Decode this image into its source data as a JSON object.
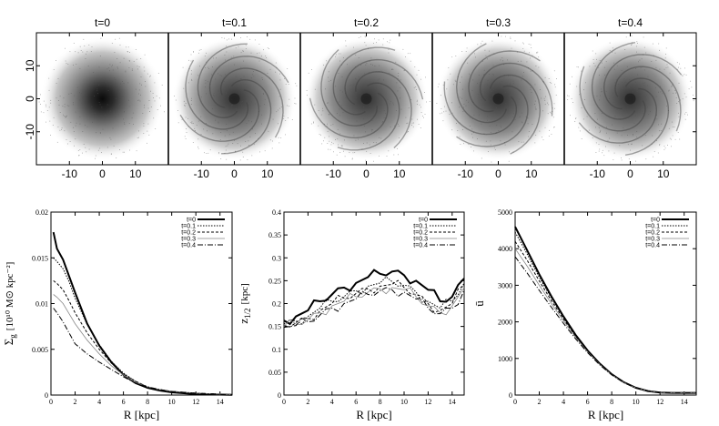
{
  "chart_data": [
    {
      "type": "scatter",
      "panel": "snapshots",
      "titles": [
        "t=0",
        "t=0.1",
        "t=0.2",
        "t=0.3",
        "t=0.4"
      ],
      "xlim": [
        -20,
        20
      ],
      "ylim": [
        -20,
        20
      ],
      "x_ticks": [
        "-10",
        "0",
        "10"
      ],
      "y_ticks": [
        "10",
        "0",
        "-10"
      ],
      "description_values": {
        "x_tick_values": [
          -10,
          0,
          10
        ],
        "y_tick_values": [
          10,
          0,
          -10
        ]
      }
    },
    {
      "type": "line",
      "xlabel": "R [kpc]",
      "ylabel": "Σg [10¹⁰ M⊙ kpc⁻²]",
      "ylabel_main": "Σ",
      "ylabel_sub": "g",
      "ylabel_units": "[10¹⁰ M⊙ kpc⁻²]",
      "xlim": [
        0,
        15
      ],
      "ylim": [
        0,
        0.02
      ],
      "x_ticks": [
        "0",
        "2",
        "4",
        "6",
        "8",
        "10",
        "12",
        "14"
      ],
      "y_ticks": [
        "0",
        "0.005",
        "0.01",
        "0.015",
        "0.02"
      ],
      "legend": [
        "t=0",
        "t=0.1",
        "t=0.2",
        "t=0.3",
        "t=0.4"
      ],
      "series": [
        {
          "name": "t=0",
          "x": [
            0.2,
            0.5,
            1,
            1.5,
            2,
            3,
            4,
            5,
            6,
            7,
            8,
            9,
            10,
            12,
            14,
            15
          ],
          "values": [
            0.0178,
            0.016,
            0.0148,
            0.013,
            0.0112,
            0.0078,
            0.0054,
            0.0036,
            0.0022,
            0.0013,
            0.0008,
            0.0005,
            0.0003,
            0.0001,
            5e-05,
            3e-05
          ]
        },
        {
          "name": "t=0.1",
          "x": [
            0.2,
            0.5,
            1,
            1.5,
            2,
            3,
            4,
            5,
            6,
            7,
            8,
            9,
            10,
            12,
            14,
            15
          ],
          "values": [
            0.015,
            0.0146,
            0.0138,
            0.0124,
            0.0106,
            0.0077,
            0.0055,
            0.0037,
            0.0024,
            0.0015,
            0.0009,
            0.0006,
            0.0004,
            0.0002,
            0.0001,
            5e-05
          ]
        },
        {
          "name": "t=0.2",
          "x": [
            0.2,
            0.5,
            1,
            1.5,
            2,
            3,
            4,
            5,
            6,
            7,
            8,
            9,
            10,
            12,
            14,
            15
          ],
          "values": [
            0.0125,
            0.0122,
            0.0115,
            0.0103,
            0.009,
            0.0068,
            0.005,
            0.0035,
            0.0023,
            0.0015,
            0.0009,
            0.0006,
            0.0004,
            0.0002,
            0.0001,
            5e-05
          ]
        },
        {
          "name": "t=0.3",
          "x": [
            0.2,
            0.5,
            1,
            1.5,
            2,
            3,
            4,
            5,
            6,
            7,
            8,
            9,
            10,
            12,
            14,
            15
          ],
          "values": [
            0.011,
            0.0107,
            0.01,
            0.0089,
            0.0078,
            0.006,
            0.0045,
            0.0032,
            0.0022,
            0.0014,
            0.0009,
            0.0006,
            0.0004,
            0.0002,
            0.0001,
            5e-05
          ]
        },
        {
          "name": "t=0.4",
          "x": [
            0.2,
            0.5,
            1,
            1.5,
            2,
            3,
            4,
            5,
            6,
            7,
            8,
            9,
            10,
            12,
            14,
            15
          ],
          "values": [
            0.0095,
            0.009,
            0.008,
            0.0068,
            0.0056,
            0.0045,
            0.0036,
            0.0028,
            0.002,
            0.0013,
            0.0009,
            0.0006,
            0.0004,
            0.0002,
            0.0001,
            5e-05
          ]
        }
      ]
    },
    {
      "type": "line",
      "xlabel": "R [kpc]",
      "ylabel": "z1/2 [kpc]",
      "ylabel_main": "z",
      "ylabel_sub": "1/2",
      "ylabel_units": "[kpc]",
      "xlim": [
        0,
        15
      ],
      "ylim": [
        0,
        0.4
      ],
      "x_ticks": [
        "0",
        "2",
        "4",
        "6",
        "8",
        "10",
        "12",
        "14"
      ],
      "y_ticks": [
        "0",
        "0.05",
        "0.1",
        "0.15",
        "0.2",
        "0.25",
        "0.3",
        "0.35",
        "0.4"
      ],
      "legend": [
        "t=0",
        "t=0.1",
        "t=0.2",
        "t=0.3",
        "t=0.4"
      ],
      "series": [
        {
          "name": "t=0",
          "x": [
            0,
            1,
            2,
            3,
            4,
            5,
            6,
            7,
            8,
            9,
            10,
            11,
            12,
            13,
            14,
            15
          ],
          "values": [
            0.163,
            0.172,
            0.185,
            0.205,
            0.22,
            0.235,
            0.245,
            0.258,
            0.265,
            0.27,
            0.262,
            0.25,
            0.23,
            0.205,
            0.215,
            0.255
          ]
        },
        {
          "name": "t=0.1",
          "x": [
            0,
            1,
            2,
            3,
            4,
            5,
            6,
            7,
            8,
            9,
            10,
            11,
            12,
            13,
            14,
            15
          ],
          "values": [
            0.155,
            0.162,
            0.172,
            0.19,
            0.205,
            0.215,
            0.228,
            0.238,
            0.245,
            0.248,
            0.24,
            0.225,
            0.205,
            0.19,
            0.205,
            0.245
          ]
        },
        {
          "name": "t=0.2",
          "x": [
            0,
            1,
            2,
            3,
            4,
            5,
            6,
            7,
            8,
            9,
            10,
            11,
            12,
            13,
            14,
            15
          ],
          "values": [
            0.152,
            0.158,
            0.168,
            0.185,
            0.2,
            0.212,
            0.222,
            0.232,
            0.238,
            0.242,
            0.235,
            0.22,
            0.2,
            0.185,
            0.2,
            0.24
          ]
        },
        {
          "name": "t=0.3",
          "x": [
            0,
            1,
            2,
            3,
            4,
            5,
            6,
            7,
            8,
            9,
            10,
            11,
            12,
            13,
            14,
            15
          ],
          "values": [
            0.15,
            0.155,
            0.165,
            0.18,
            0.195,
            0.205,
            0.215,
            0.225,
            0.232,
            0.235,
            0.23,
            0.215,
            0.195,
            0.18,
            0.195,
            0.235
          ]
        },
        {
          "name": "t=0.4",
          "x": [
            0,
            1,
            2,
            3,
            4,
            5,
            6,
            7,
            8,
            9,
            10,
            11,
            12,
            13,
            14,
            15
          ],
          "values": [
            0.148,
            0.152,
            0.16,
            0.175,
            0.19,
            0.2,
            0.21,
            0.22,
            0.228,
            0.23,
            0.225,
            0.21,
            0.19,
            0.178,
            0.19,
            0.23
          ]
        }
      ]
    },
    {
      "type": "line",
      "xlabel": "R [kpc]",
      "ylabel": "ū",
      "ylabel_main": "ū",
      "ylabel_sub": "",
      "ylabel_units": "",
      "xlim": [
        0,
        15
      ],
      "ylim": [
        0,
        5000
      ],
      "x_ticks": [
        "0",
        "2",
        "4",
        "6",
        "8",
        "10",
        "12",
        "14"
      ],
      "y_ticks": [
        "0",
        "1000",
        "2000",
        "3000",
        "4000",
        "5000"
      ],
      "legend": [
        "t=0",
        "t=0.1",
        "t=0.2",
        "t=0.3",
        "t=0.4"
      ],
      "series": [
        {
          "name": "t=0",
          "x": [
            0,
            1,
            2,
            3,
            4,
            5,
            6,
            7,
            8,
            9,
            10,
            11,
            12,
            13,
            14,
            15
          ],
          "values": [
            4600,
            3950,
            3300,
            2700,
            2150,
            1650,
            1220,
            860,
            570,
            350,
            200,
            110,
            70,
            60,
            60,
            60
          ]
        },
        {
          "name": "t=0.1",
          "x": [
            0,
            1,
            2,
            3,
            4,
            5,
            6,
            7,
            8,
            9,
            10,
            11,
            12,
            13,
            14,
            15
          ],
          "values": [
            4450,
            3850,
            3220,
            2650,
            2120,
            1630,
            1210,
            850,
            565,
            348,
            200,
            110,
            70,
            60,
            60,
            60
          ]
        },
        {
          "name": "t=0.2",
          "x": [
            0,
            1,
            2,
            3,
            4,
            5,
            6,
            7,
            8,
            9,
            10,
            11,
            12,
            13,
            14,
            15
          ],
          "values": [
            4200,
            3680,
            3120,
            2580,
            2080,
            1610,
            1200,
            845,
            560,
            345,
            198,
            110,
            70,
            60,
            60,
            60
          ]
        },
        {
          "name": "t=0.3",
          "x": [
            0,
            1,
            2,
            3,
            4,
            5,
            6,
            7,
            8,
            9,
            10,
            11,
            12,
            13,
            14,
            15
          ],
          "values": [
            4000,
            3520,
            3000,
            2500,
            2030,
            1580,
            1180,
            835,
            555,
            342,
            196,
            110,
            70,
            60,
            60,
            60
          ]
        },
        {
          "name": "t=0.4",
          "x": [
            0,
            1,
            2,
            3,
            4,
            5,
            6,
            7,
            8,
            9,
            10,
            11,
            12,
            13,
            14,
            15
          ],
          "values": [
            3780,
            3330,
            2860,
            2400,
            1960,
            1540,
            1160,
            825,
            550,
            340,
            195,
            110,
            70,
            60,
            60,
            60
          ]
        }
      ]
    }
  ]
}
